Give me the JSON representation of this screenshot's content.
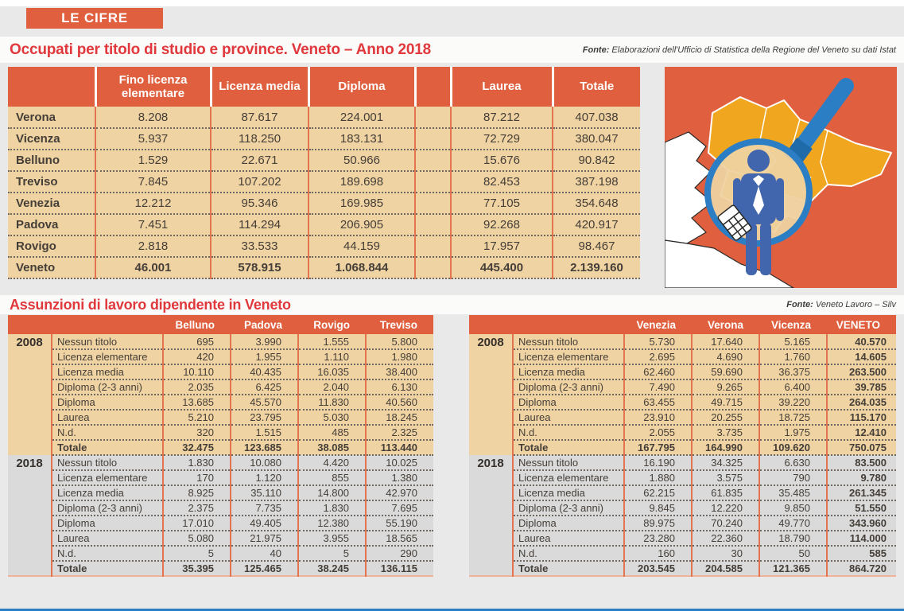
{
  "kicker": "LE CIFRE",
  "colors": {
    "accent_orange": "#df5f3e",
    "beige_row": "#f0d3a2",
    "gray_row": "#dadada",
    "title_red": "#e0383c",
    "map_yellow": "#f0a71f",
    "lens_blue": "#2b7ec4",
    "bottom_bar_blue": "#2b7ec4"
  },
  "section1": {
    "title": "Occupati per titolo di studio e province. Veneto – Anno 2018",
    "source_label": "Fonte:",
    "source": "Elaborazioni dell'Ufficio di Statistica della Regione del Veneto su dati Istat"
  },
  "section2": {
    "title": "Assunzioni di lavoro dipendente in Veneto",
    "source_label": "Fonte:",
    "source": "Veneto Lavoro – Silv"
  },
  "illustration": {
    "description": "veneto-map-with-magnifying-glass-and-worker",
    "icons": [
      "magnifying-glass-icon",
      "worker-icon",
      "calculator-icon",
      "veneto-map"
    ]
  },
  "chart_data": [
    {
      "type": "table",
      "title": "Occupati per titolo di studio e province. Veneto – Anno 2018",
      "columns": [
        "",
        "Fino licenza elementare",
        "Licenza media",
        "Diploma",
        "",
        "Laurea",
        "Totale"
      ],
      "rows": [
        [
          "Verona",
          "8.208",
          "87.617",
          "224.001",
          "",
          "87.212",
          "407.038"
        ],
        [
          "Vicenza",
          "5.937",
          "118.250",
          "183.131",
          "",
          "72.729",
          "380.047"
        ],
        [
          "Belluno",
          "1.529",
          "22.671",
          "50.966",
          "",
          "15.676",
          "90.842"
        ],
        [
          "Treviso",
          "7.845",
          "107.202",
          "189.698",
          "",
          "82.453",
          "387.198"
        ],
        [
          "Venezia",
          "12.212",
          "95.346",
          "169.985",
          "",
          "77.105",
          "354.648"
        ],
        [
          "Padova",
          "7.451",
          "114.294",
          "206.905",
          "",
          "92.268",
          "420.917"
        ],
        [
          "Rovigo",
          "2.818",
          "33.533",
          "44.159",
          "",
          "17.957",
          "98.467"
        ],
        [
          "Veneto",
          "46.001",
          "578.915",
          "1.068.844",
          "",
          "445.400",
          "2.139.160"
        ]
      ],
      "bold_row_labels": [
        "Veneto"
      ]
    },
    {
      "type": "table",
      "title": "Assunzioni di lavoro dipendente in Veneto — Belluno, Padova, Rovigo, Treviso",
      "columns": [
        "Belluno",
        "Padova",
        "Rovigo",
        "Treviso"
      ],
      "groups": [
        {
          "year": "2008",
          "rows": [
            [
              "Nessun titolo",
              "695",
              "3.990",
              "1.555",
              "5.800"
            ],
            [
              "Licenza elementare",
              "420",
              "1.955",
              "1.110",
              "1.980"
            ],
            [
              "Licenza media",
              "10.110",
              "40.435",
              "16.035",
              "38.400"
            ],
            [
              "Diploma (2-3 anni)",
              "2.035",
              "6.425",
              "2.040",
              "6.130"
            ],
            [
              "Diploma",
              "13.685",
              "45.570",
              "11.830",
              "40.560"
            ],
            [
              "Laurea",
              "5.210",
              "23.795",
              "5.030",
              "18.245"
            ],
            [
              "N.d.",
              "320",
              "1.515",
              "485",
              "2.325"
            ],
            [
              "Totale",
              "32.475",
              "123.685",
              "38.085",
              "113.440"
            ]
          ]
        },
        {
          "year": "2018",
          "rows": [
            [
              "Nessun titolo",
              "1.830",
              "10.080",
              "4.420",
              "10.025"
            ],
            [
              "Licenza elementare",
              "170",
              "1.120",
              "855",
              "1.380"
            ],
            [
              "Licenza media",
              "8.925",
              "35.110",
              "14.800",
              "42.970"
            ],
            [
              "Diploma (2-3 anni)",
              "2.375",
              "7.735",
              "1.830",
              "7.695"
            ],
            [
              "Diploma",
              "17.010",
              "49.405",
              "12.380",
              "55.190"
            ],
            [
              "Laurea",
              "5.080",
              "21.975",
              "3.955",
              "18.565"
            ],
            [
              "N.d.",
              "5",
              "40",
              "5",
              "290"
            ],
            [
              "Totale",
              "35.395",
              "125.465",
              "38.245",
              "136.115"
            ]
          ]
        }
      ]
    },
    {
      "type": "table",
      "title": "Assunzioni di lavoro dipendente in Veneto — Venezia, Verona, Vicenza, VENETO",
      "columns": [
        "Venezia",
        "Verona",
        "Vicenza",
        "VENETO"
      ],
      "bold_last_column": true,
      "groups": [
        {
          "year": "2008",
          "rows": [
            [
              "Nessun titolo",
              "5.730",
              "17.640",
              "5.165",
              "40.570"
            ],
            [
              "Licenza elementare",
              "2.695",
              "4.690",
              "1.760",
              "14.605"
            ],
            [
              "Licenza media",
              "62.460",
              "59.690",
              "36.375",
              "263.500"
            ],
            [
              "Diploma (2-3 anni)",
              "7.490",
              "9.265",
              "6.400",
              "39.785"
            ],
            [
              "Diploma",
              "63.455",
              "49.715",
              "39.220",
              "264.035"
            ],
            [
              "Laurea",
              "23.910",
              "20.255",
              "18.725",
              "115.170"
            ],
            [
              "N.d.",
              "2.055",
              "3.735",
              "1.975",
              "12.410"
            ],
            [
              "Totale",
              "167.795",
              "164.990",
              "109.620",
              "750.075"
            ]
          ]
        },
        {
          "year": "2018",
          "rows": [
            [
              "Nessun titolo",
              "16.190",
              "34.325",
              "6.630",
              "83.500"
            ],
            [
              "Licenza elementare",
              "1.880",
              "3.575",
              "790",
              "9.780"
            ],
            [
              "Licenza media",
              "62.215",
              "61.835",
              "35.485",
              "261.345"
            ],
            [
              "Diploma (2-3 anni)",
              "9.845",
              "12.220",
              "9.850",
              "51.550"
            ],
            [
              "Diploma",
              "89.975",
              "70.240",
              "49.770",
              "343.960"
            ],
            [
              "Laurea",
              "23.280",
              "22.360",
              "18.790",
              "114.000"
            ],
            [
              "N.d.",
              "160",
              "30",
              "50",
              "585"
            ],
            [
              "Totale",
              "203.545",
              "204.585",
              "121.365",
              "864.720"
            ]
          ]
        }
      ]
    }
  ]
}
